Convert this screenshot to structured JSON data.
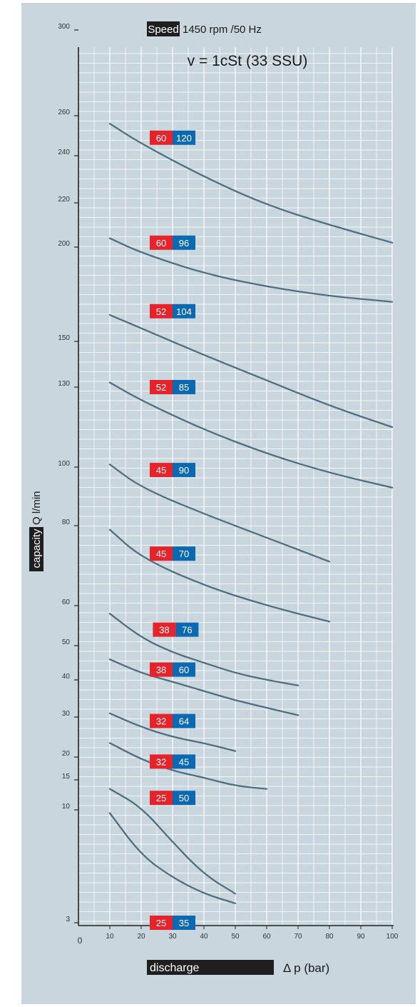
{
  "chart_data": {
    "type": "line",
    "header": {
      "speed_label": "Speed",
      "speed_value": "1450 rpm /50 Hz",
      "viscosity": "v = 1cSt (33 SSU)"
    },
    "ylabel": "capacity Q l/min",
    "xlabel_badge": "discharge",
    "xlabel_unit": "Δ p (bar)",
    "x_ticks": [
      0,
      10,
      20,
      30,
      40,
      50,
      60,
      70,
      80,
      90,
      100
    ],
    "x_range": [
      0,
      100
    ],
    "y_scale": "nonlinear (read from printed ticks)",
    "y_ticks": [
      3,
      10,
      15,
      20,
      30,
      40,
      50,
      60,
      80,
      100,
      130,
      150,
      200,
      220,
      240,
      260,
      300
    ],
    "grid": true,
    "series": [
      {
        "x": [
          10,
          20,
          40,
          60,
          80,
          100
        ],
        "y": [
          256,
          246,
          231,
          219,
          210,
          202
        ]
      },
      {
        "x": [
          10,
          20,
          40,
          60,
          80,
          100
        ],
        "y": [
          204,
          197,
          186,
          179,
          174,
          171
        ]
      },
      {
        "x": [
          10,
          20,
          40,
          60,
          80,
          100
        ],
        "y": [
          164,
          157,
          144,
          133,
          123,
          115
        ]
      },
      {
        "x": [
          10,
          20,
          40,
          60,
          80,
          100
        ],
        "y": [
          132,
          125,
          114,
          105,
          98,
          93
        ]
      },
      {
        "x": [
          10,
          20,
          40,
          60,
          80
        ],
        "y": [
          101,
          93,
          84,
          77,
          71
        ]
      },
      {
        "x": [
          10,
          20,
          40,
          60,
          80
        ],
        "y": [
          79,
          72,
          65,
          60,
          56
        ]
      },
      {
        "x": [
          10,
          20,
          30,
          40,
          50,
          60,
          70
        ],
        "y": [
          58,
          52,
          48,
          45,
          42,
          40,
          38.5
        ]
      },
      {
        "x": [
          10,
          20,
          30,
          40,
          50,
          60,
          70
        ],
        "y": [
          46,
          42,
          39.5,
          37,
          34.5,
          32.5,
          30.5
        ]
      },
      {
        "x": [
          10,
          20,
          30,
          40,
          50
        ],
        "y": [
          31,
          27.5,
          25,
          23.5,
          21.5
        ]
      },
      {
        "x": [
          10,
          20,
          30,
          40,
          50,
          60
        ],
        "y": [
          23.5,
          19.5,
          17,
          15.5,
          14,
          13.5
        ]
      },
      {
        "x": [
          10,
          20,
          30,
          40,
          50
        ],
        "y": [
          13.5,
          10.5,
          8,
          6,
          4.8
        ]
      },
      {
        "x": [
          10,
          20,
          30,
          40,
          50
        ],
        "y": [
          9.8,
          7.2,
          5.8,
          4.8,
          4.2
        ]
      }
    ],
    "annotations": [
      {
        "left": "60",
        "right": "120",
        "x": 30,
        "y": 249
      },
      {
        "left": "60",
        "right": "96",
        "x": 30,
        "y": 202
      },
      {
        "left": "52",
        "right": "104",
        "x": 30,
        "y": 166
      },
      {
        "left": "52",
        "right": "85",
        "x": 30,
        "y": 130
      },
      {
        "left": "45",
        "right": "90",
        "x": 30,
        "y": 99
      },
      {
        "left": "45",
        "right": "70",
        "x": 30,
        "y": 73
      },
      {
        "left": "38",
        "right": "76",
        "x": 31,
        "y": 54
      },
      {
        "left": "38",
        "right": "60",
        "x": 30,
        "y": 43
      },
      {
        "left": "32",
        "right": "64",
        "x": 30,
        "y": 29
      },
      {
        "left": "32",
        "right": "45",
        "x": 30,
        "y": 19
      },
      {
        "left": "25",
        "right": "50",
        "x": 30,
        "y": 12
      },
      {
        "left": "25",
        "right": "35",
        "x": 30,
        "y": 3
      }
    ],
    "colors": {
      "background": "#c9d6de",
      "grid": "#ffffff",
      "curve": "#4e6f80",
      "badge_red": "#e5232a",
      "badge_blue": "#0a69b0",
      "dark_label": "#1f1f1f",
      "axis": "#222222"
    }
  }
}
